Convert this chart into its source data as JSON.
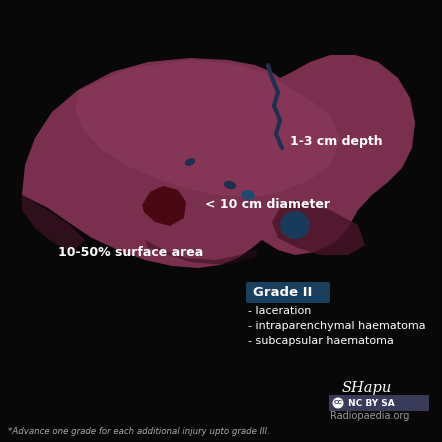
{
  "bg_color": "#080808",
  "liver_color": "#7a2f4e",
  "liver_light_color": "#8d3a5c",
  "liver_dark_color": "#4a1428",
  "liver_shadow_color": "#2d0e1a",
  "laceration_color": "#1e3050",
  "haematoma_dark_color": "#4a0812",
  "haematoma_blue_color": "#1a3a5a",
  "haematoma_blue_light": "#1e4a70",
  "grade_box_color": "#1a4060",
  "text_color": "#ffffff",
  "footer_color": "#aaaaaa",
  "title_text": "1-3 cm depth",
  "label1": "< 10 cm diameter",
  "label2": "10-50% surface area",
  "grade_label": "Grade II",
  "bullet1": "- laceration",
  "bullet2": "- intraparenchymal haematoma",
  "bullet3": "- subcapsular haematoma",
  "footer_text": "*Advance one grade for each additional injury upto grade III.",
  "credit_text": "SHapu",
  "radiopaedia_text": "Radiopaedia.org",
  "cc_text": "NC BY SA"
}
